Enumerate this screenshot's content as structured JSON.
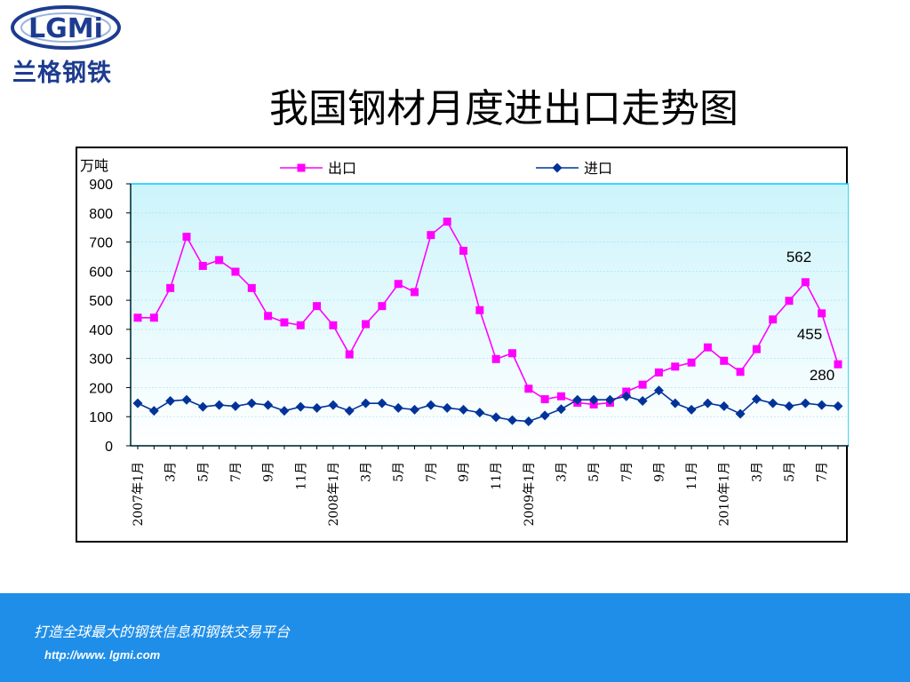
{
  "brand": {
    "logo_text": "LGMi",
    "name": "兰格钢铁"
  },
  "page_title": "我国钢材月度进出口走势图",
  "footer": {
    "slogan": "打造全球最大的钢铁信息和钢铁交易平台",
    "url": "http://www. lgmi.com"
  },
  "colors": {
    "export": "#ff00ff",
    "import": "#003399",
    "footer_bg": "#1f8ee8",
    "plot_bg_top": "#ccf4fb",
    "plot_bg_bottom": "#ffffff",
    "brand": "#1d3c8f"
  },
  "chart_data": {
    "type": "line",
    "title": "我国钢材月度进出口走势图",
    "ylabel": "万吨",
    "ylim": [
      0,
      900
    ],
    "yticks": [
      0,
      100,
      200,
      300,
      400,
      500,
      600,
      700,
      800,
      900
    ],
    "legend_position": "top",
    "x_tick_labels": [
      "2007年1月",
      "3月",
      "5月",
      "7月",
      "9月",
      "11月",
      "2008年1月",
      "3月",
      "5月",
      "7月",
      "9月",
      "11月",
      "2009年1月",
      "3月",
      "5月",
      "7月",
      "9月",
      "11月",
      "2010年1月",
      "3月",
      "5月",
      "7月"
    ],
    "x_tick_every": 2,
    "series": [
      {
        "name": "出口",
        "marker": "square",
        "values": [
          440,
          440,
          542,
          718,
          618,
          638,
          598,
          542,
          446,
          424,
          414,
          480,
          414,
          314,
          418,
          480,
          556,
          528,
          724,
          770,
          670,
          466,
          298,
          318,
          196,
          160,
          170,
          148,
          142,
          148,
          186,
          210,
          252,
          272,
          286,
          338,
          292,
          254,
          332,
          434,
          498,
          562,
          455,
          280
        ]
      },
      {
        "name": "进口",
        "marker": "diamond",
        "values": [
          146,
          120,
          154,
          158,
          134,
          140,
          136,
          146,
          140,
          120,
          134,
          130,
          140,
          120,
          146,
          146,
          130,
          124,
          140,
          130,
          124,
          114,
          98,
          88,
          84,
          104,
          126,
          158,
          158,
          158,
          170,
          154,
          190,
          146,
          124,
          146,
          136,
          110,
          160,
          146,
          136,
          146,
          140,
          136
        ]
      }
    ],
    "annotations": [
      "562",
      "455",
      "280"
    ]
  }
}
